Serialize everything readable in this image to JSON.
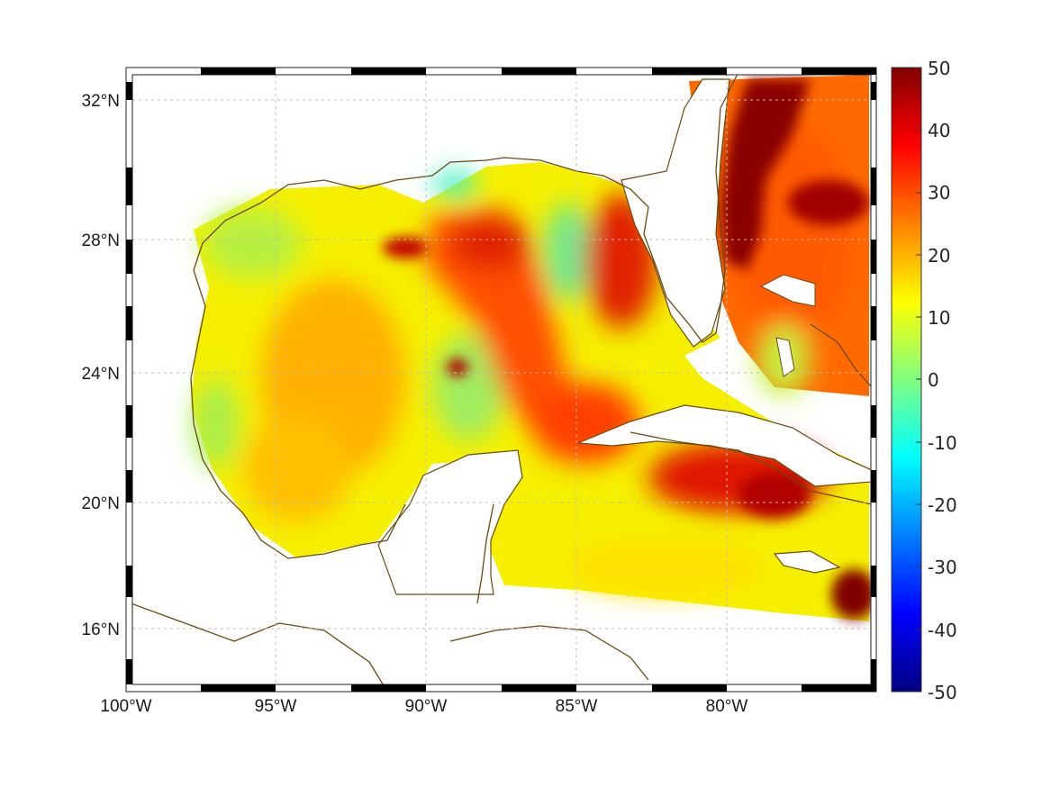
{
  "map": {
    "projection": "Mercator",
    "extent": {
      "lon": [
        -100,
        -75
      ],
      "lat": [
        14,
        33
      ]
    },
    "lon_ticks": [
      "100°W",
      "95°W",
      "90°W",
      "85°W",
      "80°W"
    ],
    "lat_ticks": [
      "32°N",
      "28°N",
      "24°N",
      "20°N",
      "16°N"
    ],
    "grid": true,
    "frame_style": "alternating black/white border",
    "coastline_color": "#6b4a12",
    "land_color": "#ffffff"
  },
  "field": {
    "colormap": "jet",
    "notable_features": [
      "dark red Gulf Stream east of Florida",
      "red Loop Current in central Gulf",
      "red band south of Cuba",
      "dark red patch south of Jamaica",
      "green/yellow western and coastal Gulf"
    ]
  },
  "colorbar": {
    "ticks": [
      "50",
      "40",
      "30",
      "20",
      "10",
      "0",
      "-10",
      "-20",
      "-30",
      "-40",
      "-50"
    ],
    "min": -50,
    "max": 50,
    "location": "right"
  }
}
